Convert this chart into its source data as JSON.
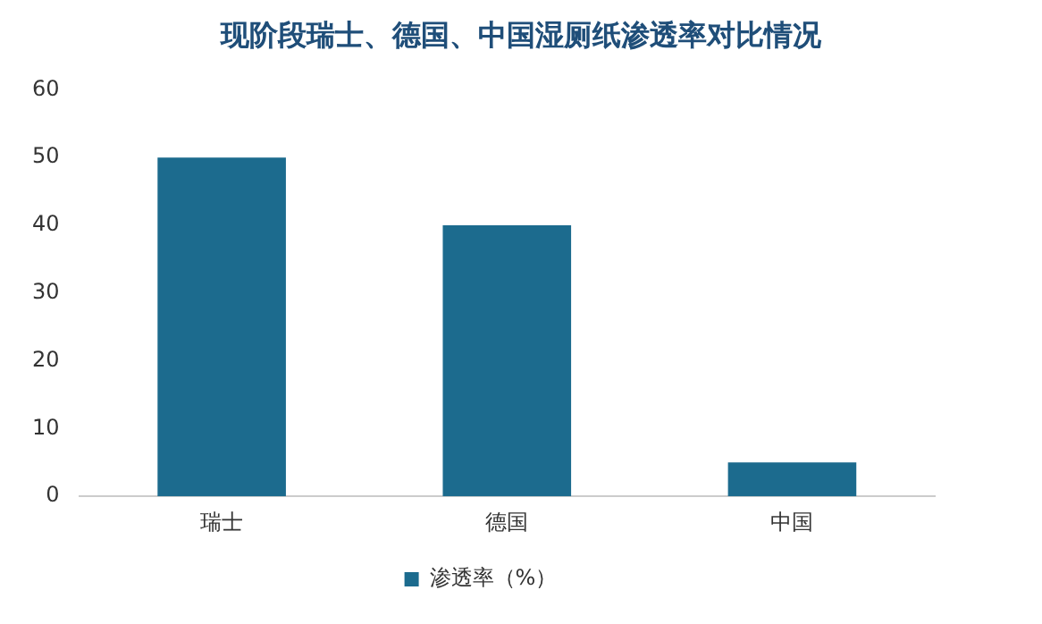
{
  "chart_data": {
    "type": "bar",
    "title": "现阶段瑞士、德国、中国湿厕纸渗透率对比情况",
    "categories": [
      "瑞士",
      "德国",
      "中国"
    ],
    "series": [
      {
        "name": "渗透率（%）",
        "color": "#1c6b8e",
        "values": [
          50,
          40,
          5
        ]
      }
    ],
    "ylim": [
      0,
      60
    ],
    "yticks": [
      0,
      10,
      20,
      30,
      40,
      50,
      60
    ],
    "grid": false,
    "legend": "bottom"
  }
}
